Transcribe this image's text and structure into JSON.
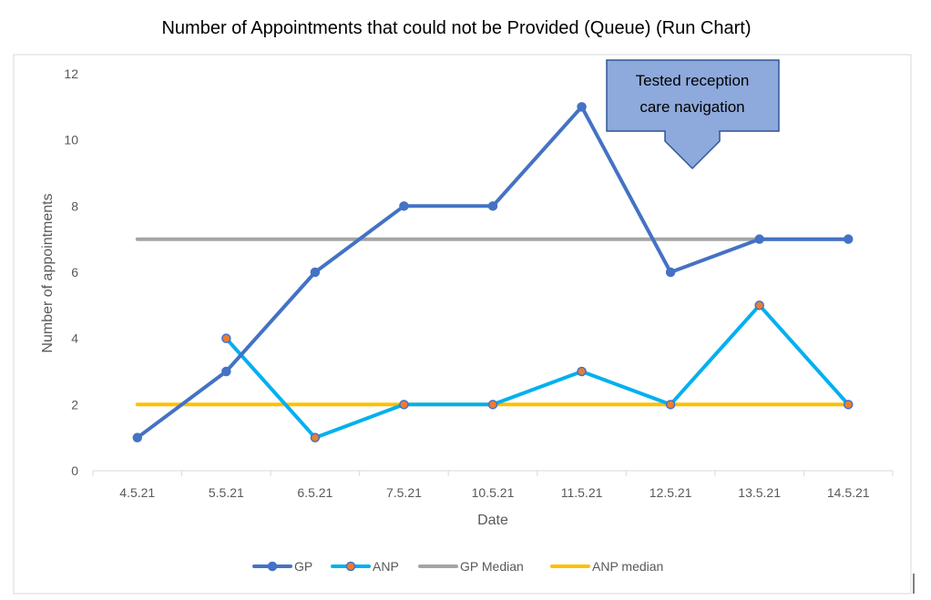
{
  "chart_data": {
    "type": "line",
    "title": "Number of Appointments that could not be Provided (Queue) (Run Chart)",
    "xlabel": "Date",
    "ylabel": "Number of appointments",
    "categories": [
      "4.5.21",
      "5.5.21",
      "6.5.21",
      "7.5.21",
      "10.5.21",
      "11.5.21",
      "12.5.21",
      "13.5.21",
      "14.5.21"
    ],
    "ylim": [
      0,
      12
    ],
    "yticks": [
      0,
      2,
      4,
      6,
      8,
      10,
      12
    ],
    "grid": false,
    "legend_position": "bottom",
    "series": [
      {
        "name": "GP",
        "values": [
          1,
          3,
          6,
          8,
          8,
          11,
          6,
          7,
          7
        ],
        "color": "#4472C4",
        "marker_fill": "#4472C4",
        "marker_stroke": "#4472C4",
        "markers": true
      },
      {
        "name": "ANP",
        "values": [
          null,
          4,
          1,
          2,
          2,
          3,
          2,
          5,
          2
        ],
        "color": "#00B0F0",
        "marker_fill": "#ED7D31",
        "marker_stroke": "#4472C4",
        "markers": true
      },
      {
        "name": "GP Median",
        "values": [
          7,
          7,
          7,
          7,
          7,
          7,
          7,
          7,
          7
        ],
        "color": "#A5A5A5",
        "markers": false
      },
      {
        "name": "ANP median",
        "values": [
          2,
          2,
          2,
          2,
          2,
          2,
          2,
          2,
          2
        ],
        "color": "#FFC000",
        "markers": false
      }
    ],
    "annotations": [
      {
        "text_lines": [
          "Tested reception",
          "care navigation"
        ],
        "points_to_category": "12.5.21",
        "fill": "#8EA9DB",
        "stroke": "#2F5597"
      }
    ]
  }
}
